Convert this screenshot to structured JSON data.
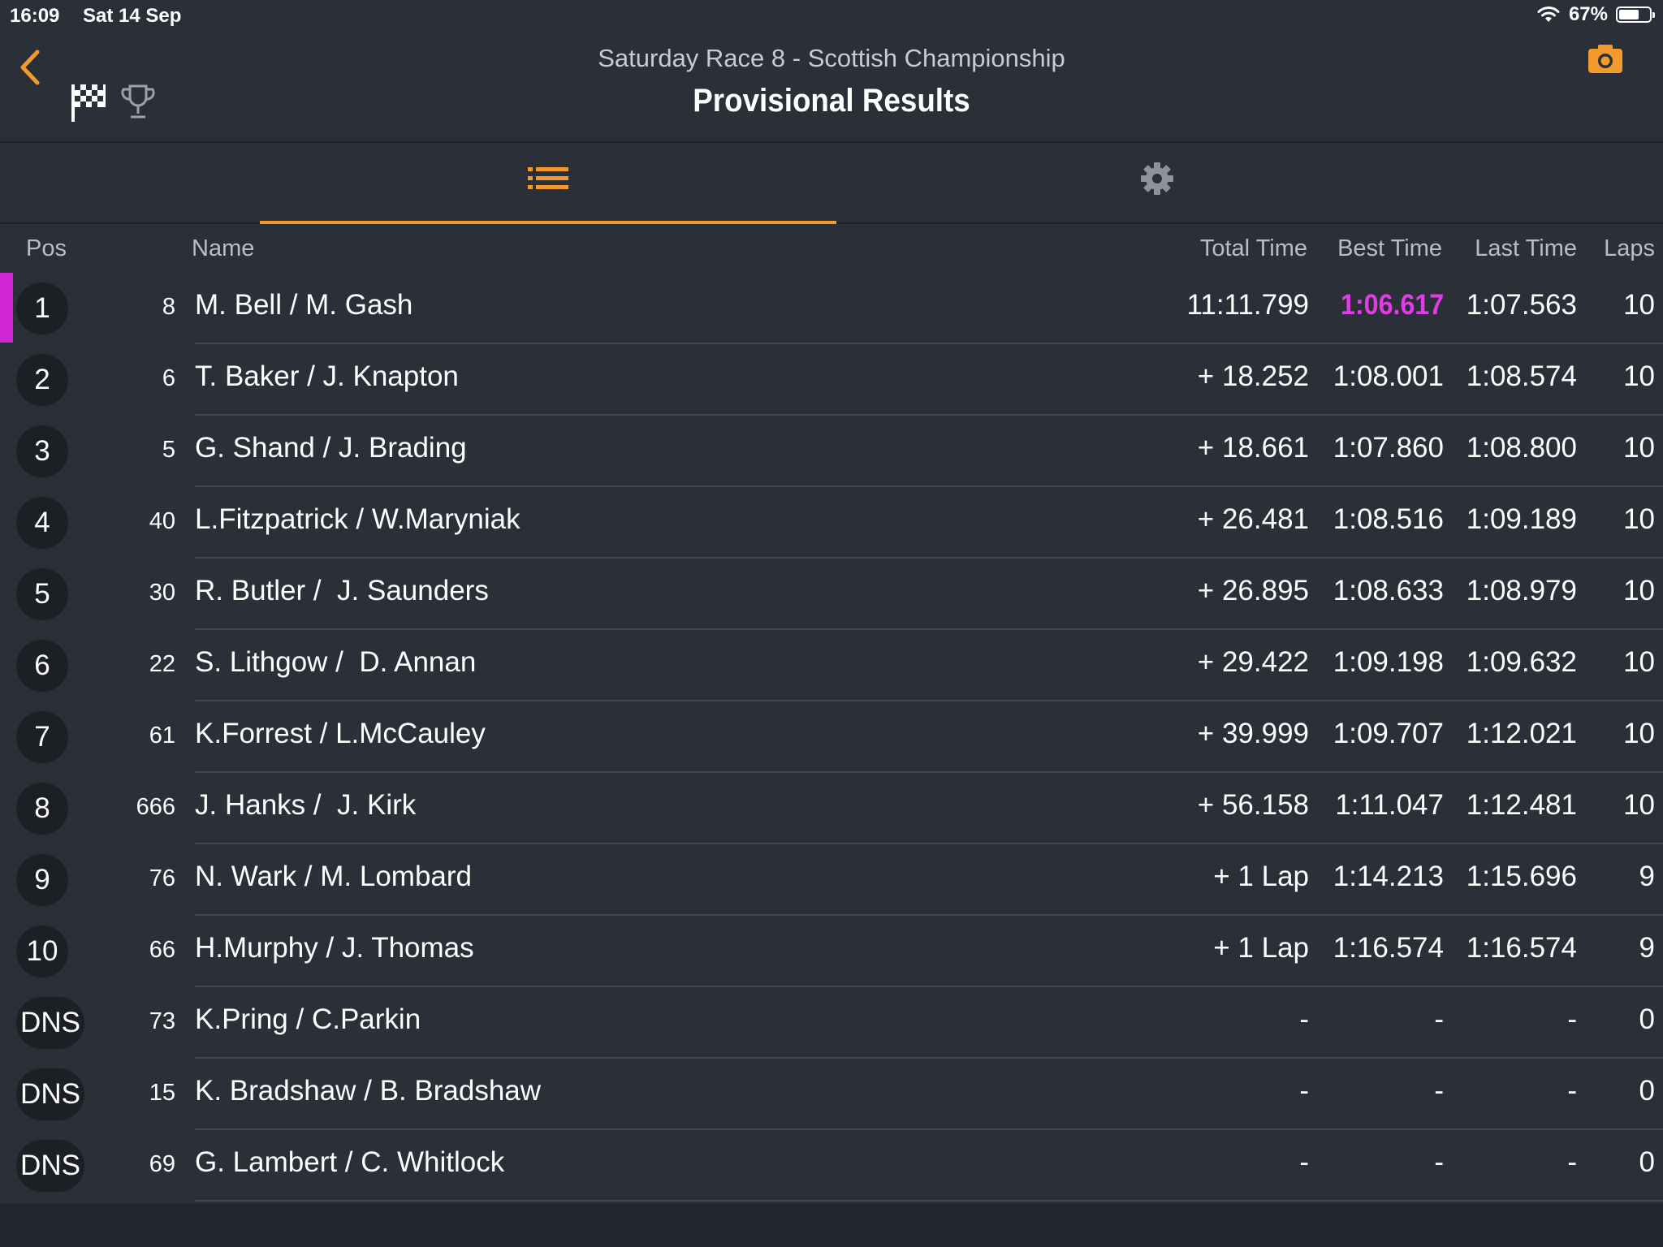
{
  "status_bar": {
    "time": "16:09",
    "date": "Sat 14 Sep",
    "battery_pct": "67%",
    "battery_level": 0.67
  },
  "header": {
    "subtitle": "Saturday Race 8 - Scottish Championship",
    "title": "Provisional Results",
    "icons": [
      "back-chevron-icon",
      "checkered-flag-icon",
      "trophy-icon",
      "camera-icon"
    ]
  },
  "tabs": [
    {
      "icon": "list-icon",
      "active": true
    },
    {
      "icon": "gear-icon",
      "active": false
    }
  ],
  "columns": {
    "pos": "Pos",
    "name": "Name",
    "total": "Total Time",
    "best": "Best Time",
    "last": "Last Time",
    "laps": "Laps"
  },
  "colors": {
    "accent": "#f29a2e",
    "fastest": "#e23ce8",
    "background": "#2b2f37"
  },
  "rows": [
    {
      "pos": "1",
      "num": "8",
      "name": "M. Bell / M. Gash",
      "total": "11:11.799",
      "best": "1:06.617",
      "last": "1:07.563",
      "laps": "10",
      "fastest": true
    },
    {
      "pos": "2",
      "num": "6",
      "name": "T. Baker / J. Knapton",
      "total": "+ 18.252",
      "best": "1:08.001",
      "last": "1:08.574",
      "laps": "10"
    },
    {
      "pos": "3",
      "num": "5",
      "name": "G. Shand / J. Brading",
      "total": "+ 18.661",
      "best": "1:07.860",
      "last": "1:08.800",
      "laps": "10"
    },
    {
      "pos": "4",
      "num": "40",
      "name": "L.Fitzpatrick / W.Maryniak",
      "total": "+ 26.481",
      "best": "1:08.516",
      "last": "1:09.189",
      "laps": "10"
    },
    {
      "pos": "5",
      "num": "30",
      "name": "R. Butler /  J. Saunders",
      "total": "+ 26.895",
      "best": "1:08.633",
      "last": "1:08.979",
      "laps": "10"
    },
    {
      "pos": "6",
      "num": "22",
      "name": "S. Lithgow /  D. Annan",
      "total": "+ 29.422",
      "best": "1:09.198",
      "last": "1:09.632",
      "laps": "10"
    },
    {
      "pos": "7",
      "num": "61",
      "name": "K.Forrest / L.McCauley",
      "total": "+ 39.999",
      "best": "1:09.707",
      "last": "1:12.021",
      "laps": "10"
    },
    {
      "pos": "8",
      "num": "666",
      "name": "J. Hanks /  J. Kirk",
      "total": "+ 56.158",
      "best": "1:11.047",
      "last": "1:12.481",
      "laps": "10"
    },
    {
      "pos": "9",
      "num": "76",
      "name": "N. Wark / M. Lombard",
      "total": "+ 1 Lap",
      "best": "1:14.213",
      "last": "1:15.696",
      "laps": "9"
    },
    {
      "pos": "10",
      "num": "66",
      "name": "H.Murphy / J. Thomas",
      "total": "+ 1 Lap",
      "best": "1:16.574",
      "last": "1:16.574",
      "laps": "9"
    },
    {
      "pos": "DNS",
      "num": "73",
      "name": "K.Pring / C.Parkin",
      "total": "-",
      "best": "-",
      "last": "-",
      "laps": "0"
    },
    {
      "pos": "DNS",
      "num": "15",
      "name": "K. Bradshaw / B. Bradshaw",
      "total": "-",
      "best": "-",
      "last": "-",
      "laps": "0"
    },
    {
      "pos": "DNS",
      "num": "69",
      "name": "G. Lambert / C. Whitlock",
      "total": "-",
      "best": "-",
      "last": "-",
      "laps": "0"
    }
  ]
}
